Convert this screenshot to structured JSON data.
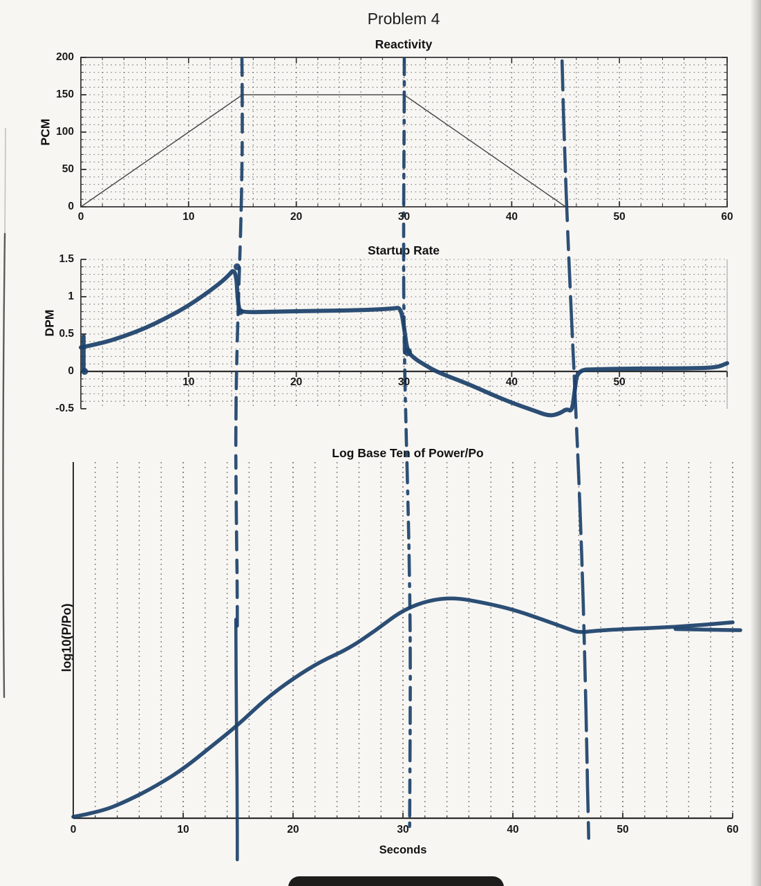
{
  "page": {
    "title": "Problem 4",
    "artifacts": [
      "left-page-edge-line",
      "right-edge-scan-shadow",
      "bottom-black-sticker"
    ]
  },
  "chart_data": [
    {
      "type": "line",
      "id": "reactivity",
      "title": "Reactivity",
      "xlabel": "",
      "ylabel": "PCM",
      "xlim": [
        0,
        60
      ],
      "ylim": [
        0,
        200
      ],
      "xticks": [
        0,
        10,
        20,
        30,
        40,
        50,
        60
      ],
      "yticks": [
        0,
        50,
        100,
        150,
        200
      ],
      "grid": {
        "x_minor": 2,
        "y_minor": 10,
        "style": "dotted"
      },
      "series": [
        {
          "name": "reactivity-pcm-printed",
          "style": "printed",
          "x": [
            0,
            15,
            30,
            45,
            60
          ],
          "y": [
            0,
            150,
            150,
            0,
            0
          ]
        }
      ]
    },
    {
      "type": "line",
      "id": "startup-rate",
      "title": "Startup Rate",
      "xlabel": "",
      "ylabel": "DPM",
      "xlim": [
        0,
        60
      ],
      "ylim": [
        -0.5,
        1.5
      ],
      "xticks": [
        10,
        20,
        30,
        40,
        50
      ],
      "yticks": [
        -0.5,
        0,
        0.5,
        1,
        1.5
      ],
      "grid": {
        "x_minor": 2,
        "y_minor": 0.1,
        "style": "dotted"
      },
      "series": [
        {
          "name": "startup-rate-hand-trace",
          "style": "ink",
          "x": [
            0,
            2,
            4,
            6,
            8,
            10,
            12,
            13.5,
            14.4,
            14.6,
            15,
            18,
            22,
            26,
            29,
            29.7,
            30.05,
            30.3,
            31,
            32,
            33,
            34,
            36,
            38,
            40,
            42,
            43.5,
            44.5,
            45.1,
            45.6,
            45.85,
            46.1,
            48,
            52,
            56,
            59,
            60
          ],
          "y": [
            0.32,
            0.38,
            0.47,
            0.58,
            0.72,
            0.88,
            1.08,
            1.25,
            1.4,
            0.84,
            0.79,
            0.8,
            0.81,
            0.82,
            0.84,
            0.86,
            0.55,
            0.27,
            0.17,
            0.08,
            0.0,
            -0.06,
            -0.17,
            -0.3,
            -0.42,
            -0.52,
            -0.6,
            -0.56,
            -0.5,
            -0.54,
            -0.25,
            0.02,
            0.03,
            0.04,
            0.04,
            0.05,
            0.11
          ]
        },
        {
          "name": "origin-mark",
          "style": "ink",
          "x": [
            0.25,
            0.25
          ],
          "y": [
            0.47,
            0.01
          ]
        }
      ],
      "blobs": [
        {
          "t": 0.35,
          "v": 0.0,
          "r": 5
        },
        {
          "t": 14.5,
          "v": 1.4,
          "r": 5
        },
        {
          "t": 14.8,
          "v": 0.8,
          "r": 5
        },
        {
          "t": 30.35,
          "v": 0.26,
          "r": 6
        }
      ]
    },
    {
      "type": "line",
      "id": "log-power",
      "title": "Log Base Ten of Power/Po",
      "xlabel": "Seconds",
      "ylabel": "log10(P/Po)",
      "xlim": [
        0,
        60
      ],
      "ylim": [
        0,
        1
      ],
      "ylim_note": "y axis has no printed tick labels; y values are fraction of axis height",
      "xticks": [
        0,
        10,
        20,
        30,
        40,
        50,
        60
      ],
      "yticks": [],
      "grid": {
        "x_minor": 2,
        "style": "dotted-vertical-only"
      },
      "series": [
        {
          "name": "log-power-hand-trace",
          "style": "ink",
          "x": [
            0,
            2.5,
            5,
            7.5,
            10,
            12.5,
            15,
            17.5,
            20,
            22.5,
            25,
            27.5,
            30,
            32.5,
            34.8,
            37.5,
            40,
            42.5,
            45,
            46,
            47.5,
            50,
            55,
            60
          ],
          "y": [
            0.004,
            0.018,
            0.05,
            0.09,
            0.138,
            0.2,
            0.262,
            0.335,
            0.392,
            0.44,
            0.475,
            0.527,
            0.585,
            0.613,
            0.619,
            0.604,
            0.586,
            0.56,
            0.532,
            0.521,
            0.526,
            0.531,
            0.537,
            0.55
          ]
        },
        {
          "name": "curve-retrace",
          "style": "ink",
          "x": [
            54.8,
            58,
            60.7
          ],
          "y": [
            0.531,
            0.529,
            0.528
          ]
        }
      ]
    }
  ],
  "annotations": {
    "hand_marker_lines": {
      "times_seconds": [
        15,
        30,
        45.5
      ],
      "ink_color": "#1c416b",
      "style": "hand-drawn dashed vertical marker lines spanning all three charts"
    }
  }
}
